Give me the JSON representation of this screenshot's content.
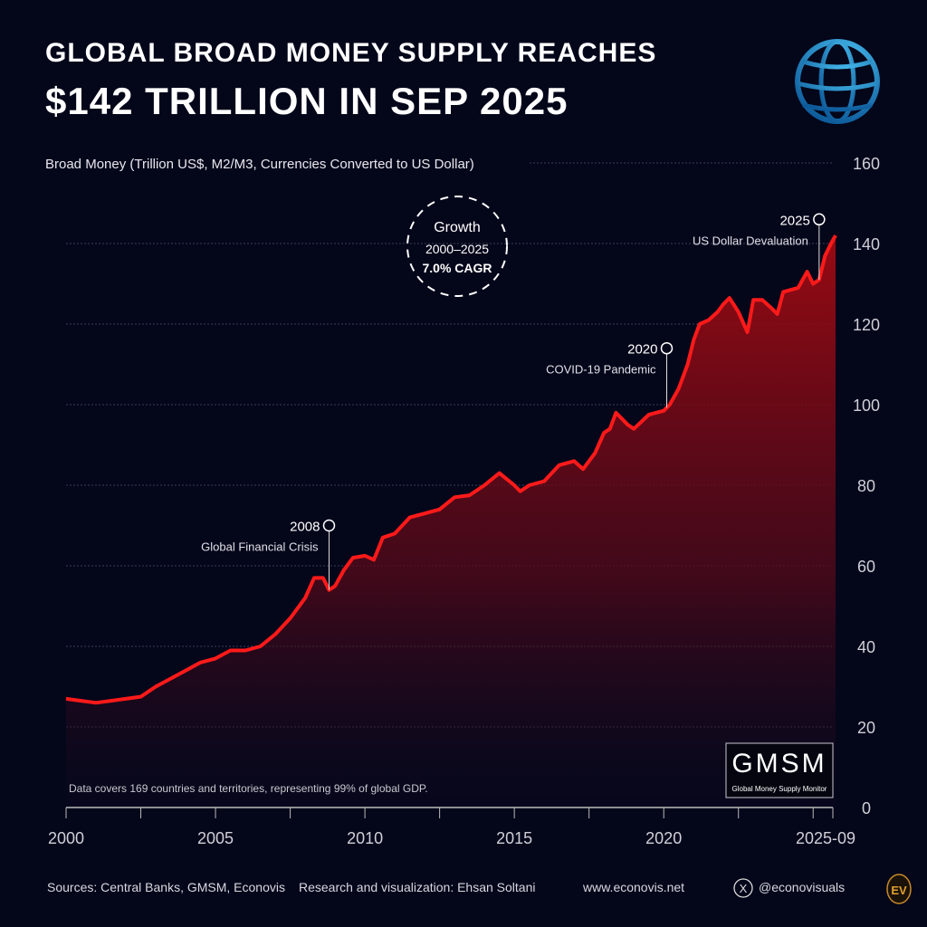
{
  "title_line1": "Global Broad Money Supply Reaches",
  "title_line2": "$142 Trillion in Sep 2025",
  "chart_data": {
    "type": "area",
    "ylabel": "Broad Money (Trillion US$, M2/M3, Currencies Converted to US Dollar)",
    "ylim": [
      0,
      160
    ],
    "yticks": [
      0,
      20,
      40,
      60,
      80,
      100,
      120,
      140,
      160
    ],
    "xlim": [
      2000,
      2025.75
    ],
    "xtick_labels": [
      {
        "x": 2000,
        "label": "2000"
      },
      {
        "x": 2005,
        "label": "2005"
      },
      {
        "x": 2010,
        "label": "2010"
      },
      {
        "x": 2015,
        "label": "2015"
      },
      {
        "x": 2020,
        "label": "2020"
      },
      {
        "x": 2025.75,
        "label": "2025-09"
      }
    ],
    "grid": true,
    "line_color": "#ff1a1a",
    "fill_color": "#9b0a12",
    "series": [
      {
        "x": [
          2000,
          2000.5,
          2001,
          2001.5,
          2002,
          2002.5,
          2003,
          2003.5,
          2004,
          2004.5,
          2005,
          2005.5,
          2006,
          2006.5,
          2007,
          2007.5,
          2008,
          2008.3,
          2008.6,
          2008.8,
          2009,
          2009.3,
          2009.6,
          2010,
          2010.3,
          2010.6,
          2011,
          2011.5,
          2012,
          2012.5,
          2013,
          2013.5,
          2014,
          2014.5,
          2015,
          2015.2,
          2015.5,
          2016,
          2016.5,
          2017,
          2017.3,
          2017.7,
          2018,
          2018.2,
          2018.4,
          2018.8,
          2019,
          2019.5,
          2020,
          2020.2,
          2020.5,
          2020.8,
          2021,
          2021.2,
          2021.5,
          2021.8,
          2022,
          2022.2,
          2022.5,
          2022.8,
          2023,
          2023.3,
          2023.6,
          2023.8,
          2024,
          2024.5,
          2024.8,
          2025,
          2025.2,
          2025.4,
          2025.6,
          2025.75
        ],
        "y": [
          27,
          26.5,
          26,
          26.5,
          27,
          27.5,
          30,
          32,
          34,
          36,
          37,
          39,
          39,
          40,
          43,
          47,
          52,
          57,
          57,
          54,
          55,
          59,
          62,
          62.5,
          61.5,
          67,
          68,
          72,
          73,
          74,
          77,
          77.5,
          80,
          83,
          80,
          78.5,
          80,
          81,
          85,
          86,
          84,
          88,
          93,
          94,
          98,
          95,
          94,
          97.5,
          98.5,
          100,
          104,
          110,
          116,
          120,
          121,
          123,
          125,
          126.5,
          123,
          118,
          126,
          126,
          124,
          122.5,
          128,
          129,
          133,
          130,
          131,
          137,
          140,
          142
        ]
      }
    ],
    "annotations": [
      {
        "x": 2008.8,
        "year": "2008",
        "label": "Global Financial Crisis",
        "marker_value": 70
      },
      {
        "x": 2020.1,
        "year": "2020",
        "label": "COVID-19 Pandemic",
        "marker_value": 114
      },
      {
        "x": 2025.2,
        "year": "2025",
        "label": "US Dollar Devaluation",
        "marker_value": 146
      }
    ],
    "growth_badge": {
      "line1": "Growth",
      "line2": "2000–2025",
      "line3": "7.0% CAGR"
    },
    "note": "Data covers 169 countries and territories, representing 99% of global GDP."
  },
  "logo": {
    "main": "GMSM",
    "sub": "Global Money Supply Monitor"
  },
  "footer": {
    "sources": "Sources: Central Banks, GMSM, Econovis",
    "research": "Research and visualization: Ehsan Soltani",
    "website": "www.econovis.net",
    "social": "@econovisuals",
    "social_icon": "x-icon",
    "brand_mark": "EV"
  },
  "globe_icon": "globe-icon",
  "globe_color": "#1a9ad8"
}
